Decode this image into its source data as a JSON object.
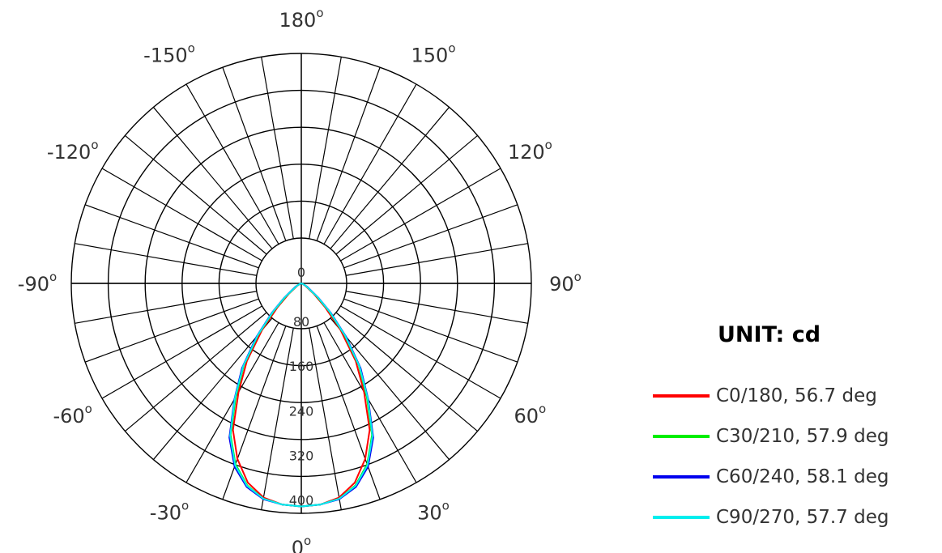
{
  "chart_data": {
    "type": "polar-luminous-intensity",
    "unit_title": "UNIT: cd",
    "radial_ticks": [
      "0",
      "80",
      "160",
      "240",
      "320",
      "400"
    ],
    "radial_max": 400,
    "angle_labels": [
      {
        "text": "180",
        "angle": 180
      },
      {
        "text": "150",
        "angle": 150
      },
      {
        "text": "120",
        "angle": 120
      },
      {
        "text": "90",
        "angle": 90
      },
      {
        "text": "60",
        "angle": 60
      },
      {
        "text": "30",
        "angle": 30
      },
      {
        "text": "0",
        "angle": 0
      },
      {
        "text": "-30",
        "angle": -30
      },
      {
        "text": "-60",
        "angle": -60
      },
      {
        "text": "-90",
        "angle": -90
      },
      {
        "text": "-120",
        "angle": -120
      },
      {
        "text": "-150",
        "angle": -150
      }
    ],
    "degree_symbol": "o",
    "series": [
      {
        "name": "C0/180, 56.7 deg",
        "color": "#ff0000",
        "angles": [
          -90,
          -80,
          -70,
          -60,
          -50,
          -45,
          -40,
          -35,
          -30,
          -25,
          -20,
          -15,
          -10,
          -5,
          0,
          5,
          10,
          15,
          20,
          25,
          30,
          35,
          40,
          45,
          50,
          60,
          70,
          80,
          90
        ],
        "values": [
          0,
          0,
          2,
          8,
          30,
          60,
          110,
          170,
          225,
          290,
          335,
          370,
          390,
          398,
          400,
          398,
          390,
          370,
          335,
          290,
          225,
          170,
          110,
          60,
          30,
          8,
          2,
          0,
          0
        ]
      },
      {
        "name": "C30/210, 57.9 deg",
        "color": "#00ee00",
        "angles": [
          -90,
          -80,
          -70,
          -60,
          -50,
          -45,
          -40,
          -35,
          -30,
          -25,
          -20,
          -15,
          -10,
          -5,
          0,
          5,
          10,
          15,
          20,
          25,
          30,
          35,
          40,
          45,
          50,
          60,
          70,
          80,
          90
        ],
        "values": [
          0,
          0,
          3,
          10,
          35,
          70,
          120,
          180,
          235,
          300,
          345,
          375,
          392,
          398,
          400,
          398,
          392,
          375,
          345,
          300,
          235,
          180,
          120,
          70,
          35,
          10,
          3,
          0,
          0
        ]
      },
      {
        "name": "C60/240, 58.1 deg",
        "color": "#0000ee",
        "angles": [
          -90,
          -80,
          -70,
          -60,
          -50,
          -45,
          -40,
          -35,
          -30,
          -25,
          -20,
          -15,
          -10,
          -5,
          0,
          5,
          10,
          15,
          20,
          25,
          30,
          35,
          40,
          45,
          50,
          60,
          70,
          80,
          90
        ],
        "values": [
          0,
          0,
          3,
          12,
          40,
          75,
          125,
          185,
          240,
          305,
          350,
          378,
          393,
          398,
          400,
          398,
          393,
          378,
          350,
          305,
          240,
          185,
          125,
          75,
          40,
          12,
          3,
          0,
          0
        ]
      },
      {
        "name": "C90/270, 57.7 deg",
        "color": "#00eeee",
        "angles": [
          -90,
          -80,
          -70,
          -60,
          -50,
          -45,
          -40,
          -35,
          -30,
          -25,
          -20,
          -15,
          -10,
          -5,
          0,
          5,
          10,
          15,
          20,
          25,
          30,
          35,
          40,
          45,
          50,
          60,
          70,
          80,
          90
        ],
        "values": [
          0,
          0,
          3,
          10,
          38,
          72,
          122,
          182,
          238,
          302,
          347,
          376,
          392,
          398,
          400,
          398,
          392,
          376,
          347,
          302,
          238,
          182,
          122,
          72,
          38,
          10,
          3,
          0,
          0
        ]
      }
    ]
  }
}
